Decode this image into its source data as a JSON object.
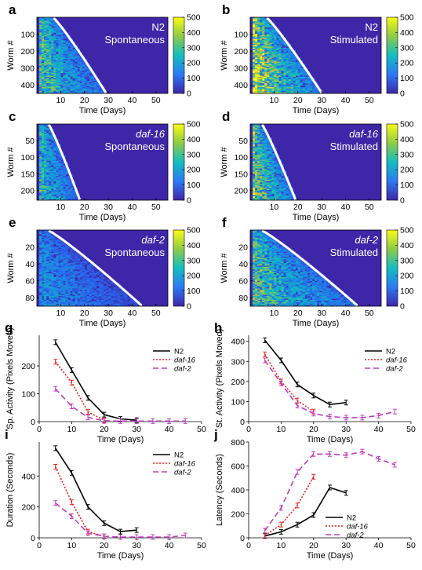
{
  "panel_letters": [
    "a",
    "b",
    "c",
    "d",
    "e",
    "f",
    "g",
    "h",
    "i",
    "j"
  ],
  "heatmaps": [
    {
      "id": "a",
      "letter": "a",
      "strain": "N2",
      "italic": false,
      "condition": "Spontaneous",
      "n": 450,
      "yticks": [
        100,
        200,
        300,
        400
      ],
      "ylabel": "Worm #",
      "xlabel": "Time (Days)",
      "xticks": [
        10,
        20,
        30,
        40,
        50
      ],
      "xlim": [
        0,
        55
      ],
      "lifespan_range": [
        7,
        29
      ],
      "intensity": 0.55,
      "cbar_ticks": [
        0,
        100,
        200,
        300,
        400,
        500
      ]
    },
    {
      "id": "b",
      "letter": "b",
      "strain": "N2",
      "italic": false,
      "condition": "Stimulated",
      "n": 450,
      "yticks": [
        100,
        200,
        300,
        400
      ],
      "ylabel": "Worm #",
      "xlabel": "Time (Days)",
      "xticks": [
        10,
        20,
        30,
        40,
        50
      ],
      "xlim": [
        0,
        55
      ],
      "lifespan_range": [
        7,
        30
      ],
      "intensity": 0.75,
      "cbar_ticks": [
        0,
        100,
        200,
        300,
        400,
        500
      ]
    },
    {
      "id": "c",
      "letter": "c",
      "strain": "daf-16",
      "italic": true,
      "condition": "Spontaneous",
      "n": 230,
      "yticks": [
        50,
        100,
        150,
        200
      ],
      "ylabel": "Worm #",
      "xlabel": "Time (Days)",
      "xticks": [
        10,
        20,
        30,
        40,
        50
      ],
      "xlim": [
        0,
        55
      ],
      "lifespan_range": [
        5,
        18
      ],
      "intensity": 0.5,
      "cbar_ticks": [
        0,
        100,
        200,
        300,
        400,
        500
      ]
    },
    {
      "id": "d",
      "letter": "d",
      "strain": "daf-16",
      "italic": true,
      "condition": "Stimulated",
      "n": 230,
      "yticks": [
        50,
        100,
        150,
        200
      ],
      "ylabel": "Worm #",
      "xlabel": "Time (Days)",
      "xticks": [
        10,
        20,
        30,
        40,
        50
      ],
      "xlim": [
        0,
        55
      ],
      "lifespan_range": [
        5,
        19
      ],
      "intensity": 0.65,
      "cbar_ticks": [
        0,
        100,
        200,
        300,
        400,
        500
      ]
    },
    {
      "id": "e",
      "letter": "e",
      "strain": "daf-2",
      "italic": true,
      "condition": "Spontaneous",
      "n": 90,
      "yticks": [
        20,
        40,
        60,
        80
      ],
      "ylabel": "Worm #",
      "xlabel": "Time (Days)",
      "xticks": [
        10,
        20,
        30,
        40,
        50
      ],
      "xlim": [
        0,
        55
      ],
      "lifespan_range": [
        5,
        44
      ],
      "intensity": 0.3,
      "cbar_ticks": [
        0,
        100,
        200,
        300,
        400,
        500
      ]
    },
    {
      "id": "f",
      "letter": "f",
      "strain": "daf-2",
      "italic": true,
      "condition": "Stimulated",
      "n": 90,
      "yticks": [
        20,
        40,
        60,
        80
      ],
      "ylabel": "Worm #",
      "xlabel": "Time (Days)",
      "xticks": [
        10,
        20,
        30,
        40,
        50
      ],
      "xlim": [
        0,
        55
      ],
      "lifespan_range": [
        5,
        45
      ],
      "intensity": 0.55,
      "cbar_ticks": [
        0,
        100,
        200,
        300,
        400,
        500
      ]
    }
  ],
  "chart_data": [
    {
      "type": "line",
      "id": "g",
      "letter": "g",
      "title": "",
      "xlabel": "Time (Days)",
      "ylabel": "Sp. Activity (Pixels Moved)",
      "xlim": [
        0,
        50
      ],
      "ylim": [
        0,
        310
      ],
      "xticks": [
        0,
        10,
        20,
        30,
        40,
        50
      ],
      "yticks": [
        0,
        100,
        200
      ],
      "series": [
        {
          "name": "N2",
          "italic": false,
          "color": "#000000",
          "dash": "",
          "x": [
            5,
            10,
            15,
            20,
            25,
            30
          ],
          "y": [
            285,
            185,
            85,
            25,
            10,
            5
          ]
        },
        {
          "name": "daf-16",
          "italic": true,
          "color": "#e8211b",
          "dash": "2,2",
          "x": [
            5,
            10,
            15,
            20
          ],
          "y": [
            215,
            140,
            35,
            5
          ]
        },
        {
          "name": "daf-2",
          "italic": true,
          "color": "#c03cc0",
          "dash": "7,4",
          "x": [
            5,
            10,
            15,
            20,
            25,
            30,
            35,
            40,
            45
          ],
          "y": [
            118,
            55,
            15,
            3,
            2,
            2,
            2,
            2,
            2
          ]
        }
      ]
    },
    {
      "type": "line",
      "id": "h",
      "letter": "h",
      "title": "",
      "xlabel": "Time (Days)",
      "ylabel": "St. Activity (Pixels Moved)",
      "xlim": [
        0,
        50
      ],
      "ylim": [
        0,
        430
      ],
      "xticks": [
        0,
        10,
        20,
        30,
        40,
        50
      ],
      "yticks": [
        0,
        100,
        200,
        300,
        400
      ],
      "series": [
        {
          "name": "N2",
          "italic": false,
          "color": "#000000",
          "dash": "",
          "x": [
            5,
            10,
            15,
            20,
            25,
            30
          ],
          "y": [
            405,
            305,
            185,
            130,
            85,
            95
          ]
        },
        {
          "name": "daf-16",
          "italic": true,
          "color": "#e8211b",
          "dash": "2,2",
          "x": [
            5,
            10,
            15,
            20
          ],
          "y": [
            335,
            200,
            105,
            50
          ]
        },
        {
          "name": "daf-2",
          "italic": true,
          "color": "#c03cc0",
          "dash": "7,4",
          "x": [
            5,
            10,
            15,
            20,
            25,
            30,
            35,
            40,
            45
          ],
          "y": [
            305,
            190,
            80,
            40,
            25,
            20,
            20,
            30,
            50
          ]
        }
      ]
    },
    {
      "type": "line",
      "id": "i",
      "letter": "i",
      "title": "",
      "xlabel": "Time (Days)",
      "ylabel": "Duration (Seconds)",
      "xlim": [
        0,
        50
      ],
      "ylim": [
        0,
        620
      ],
      "xticks": [
        0,
        10,
        20,
        30,
        40,
        50
      ],
      "yticks": [
        0,
        200,
        400
      ],
      "series": [
        {
          "name": "N2",
          "italic": false,
          "color": "#000000",
          "dash": "",
          "x": [
            5,
            10,
            15,
            20,
            25,
            30
          ],
          "y": [
            580,
            420,
            200,
            95,
            40,
            50
          ]
        },
        {
          "name": "daf-16",
          "italic": true,
          "color": "#e8211b",
          "dash": "2,2",
          "x": [
            5,
            10,
            15,
            20
          ],
          "y": [
            460,
            230,
            40,
            10
          ]
        },
        {
          "name": "daf-2",
          "italic": true,
          "color": "#c03cc0",
          "dash": "7,4",
          "x": [
            5,
            10,
            15,
            20,
            25,
            30,
            35,
            40,
            45
          ],
          "y": [
            225,
            140,
            30,
            10,
            5,
            5,
            5,
            5,
            15
          ]
        }
      ]
    },
    {
      "type": "line",
      "id": "j",
      "letter": "j",
      "title": "",
      "xlabel": "Time (Days)",
      "ylabel": "Latency (Seconds)",
      "xlim": [
        0,
        50
      ],
      "ylim": [
        0,
        800
      ],
      "xticks": [
        0,
        10,
        20,
        30,
        40,
        50
      ],
      "yticks": [
        0,
        200,
        400,
        600,
        800
      ],
      "series": [
        {
          "name": "N2",
          "italic": false,
          "color": "#000000",
          "dash": "",
          "x": [
            5,
            10,
            15,
            20,
            25,
            30
          ],
          "y": [
            15,
            50,
            110,
            190,
            420,
            375
          ]
        },
        {
          "name": "daf-16",
          "italic": true,
          "color": "#e8211b",
          "dash": "2,2",
          "x": [
            5,
            10,
            15,
            20
          ],
          "y": [
            20,
            110,
            270,
            510
          ]
        },
        {
          "name": "daf-2",
          "italic": true,
          "color": "#c03cc0",
          "dash": "7,4",
          "x": [
            5,
            10,
            15,
            20,
            25,
            30,
            35,
            40,
            45
          ],
          "y": [
            60,
            250,
            550,
            700,
            700,
            690,
            720,
            660,
            610
          ]
        }
      ]
    }
  ]
}
